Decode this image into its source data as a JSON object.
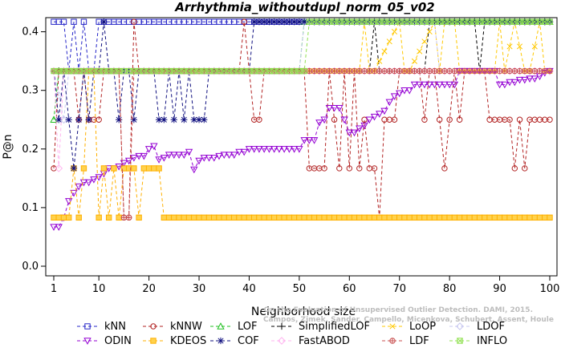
{
  "chart_data": {
    "type": "line",
    "title": "Arrhythmia_withoutdupl_norm_05_v02",
    "xlabel": "Neighborhood size",
    "ylabel": "P@n",
    "xlim": [
      1,
      100
    ],
    "ylim": [
      0,
      0.42
    ],
    "xticks": [
      1,
      10,
      20,
      30,
      40,
      50,
      60,
      70,
      80,
      90,
      100
    ],
    "yticks": [
      0.0,
      0.1,
      0.2,
      0.3,
      0.4
    ],
    "ytick_labels": [
      "0.0",
      "0.1",
      "0.2",
      "0.3",
      "0.4"
    ],
    "grid": false,
    "legend_position": "bottom",
    "watermark": [
      "Campos, Zimek, Sander, Campello, Micenkova, Schubert, Assent, Houle",
      "On the Evaluation of Unsupervised Outlier Detection. DAMI, 2015."
    ],
    "series": [
      {
        "name": "kNN",
        "color": "#2525c8",
        "marker": "square",
        "segments": [
          [
            1,
            0.417
          ],
          [
            3,
            0.417
          ],
          [
            4,
            0.333
          ],
          [
            5,
            0.417
          ],
          [
            6,
            0.333
          ],
          [
            7,
            0.417
          ],
          [
            8,
            0.333
          ],
          [
            9,
            0.333
          ],
          [
            10,
            0.417
          ],
          [
            100,
            0.417
          ]
        ]
      },
      {
        "name": "kNNW",
        "color": "#b22222",
        "marker": "circle",
        "segments": [
          [
            1,
            0.167
          ],
          [
            2,
            0.333
          ],
          [
            5,
            0.333
          ],
          [
            6,
            0.25
          ],
          [
            7,
            0.333
          ],
          [
            8,
            0.25
          ],
          [
            10,
            0.25
          ],
          [
            11,
            0.333
          ],
          [
            14,
            0.333
          ],
          [
            15,
            0.083
          ],
          [
            16,
            0.083
          ],
          [
            17,
            0.417
          ],
          [
            18,
            0.333
          ],
          [
            38,
            0.333
          ],
          [
            39,
            0.417
          ],
          [
            41,
            0.25
          ],
          [
            42,
            0.25
          ],
          [
            43,
            0.333
          ],
          [
            51,
            0.333
          ],
          [
            52,
            0.167
          ],
          [
            55,
            0.167
          ],
          [
            56,
            0.333
          ],
          [
            57,
            0.25
          ],
          [
            58,
            0.167
          ],
          [
            59,
            0.333
          ],
          [
            60,
            0.167
          ],
          [
            61,
            0.333
          ],
          [
            62,
            0.167
          ],
          [
            63,
            0.25
          ],
          [
            64,
            0.167
          ],
          [
            65,
            0.167
          ],
          [
            66,
            0.083
          ],
          [
            67,
            0.25
          ],
          [
            68,
            0.25
          ],
          [
            69,
            0.25
          ],
          [
            70,
            0.333
          ],
          [
            74,
            0.333
          ],
          [
            75,
            0.25
          ],
          [
            76,
            0.333
          ],
          [
            77,
            0.333
          ],
          [
            78,
            0.25
          ],
          [
            79,
            0.167
          ],
          [
            80,
            0.25
          ],
          [
            81,
            0.333
          ],
          [
            82,
            0.25
          ],
          [
            83,
            0.333
          ],
          [
            87,
            0.333
          ],
          [
            88,
            0.25
          ],
          [
            91,
            0.25
          ],
          [
            92,
            0.25
          ],
          [
            93,
            0.167
          ],
          [
            94,
            0.25
          ],
          [
            95,
            0.167
          ],
          [
            96,
            0.25
          ],
          [
            100,
            0.25
          ]
        ]
      },
      {
        "name": "LOF",
        "color": "#22c022",
        "marker": "triangle",
        "segments": [
          [
            1,
            0.25
          ],
          [
            2,
            0.333
          ],
          [
            50,
            0.333
          ],
          [
            51,
            0.417
          ],
          [
            100,
            0.417
          ]
        ]
      },
      {
        "name": "SimplifiedLOF",
        "color": "#000000",
        "marker": "plus",
        "segments": [
          [
            1,
            0.333
          ],
          [
            64,
            0.333
          ],
          [
            65,
            0.417
          ],
          [
            66,
            0.333
          ],
          [
            75,
            0.333
          ],
          [
            76,
            0.417
          ],
          [
            85,
            0.417
          ],
          [
            86,
            0.333
          ],
          [
            87,
            0.417
          ],
          [
            100,
            0.417
          ]
        ]
      },
      {
        "name": "LoOP",
        "color": "#ffc800",
        "marker": "x",
        "segments": [
          [
            1,
            0.333
          ],
          [
            62,
            0.333
          ],
          [
            63,
            0.417
          ],
          [
            64,
            0.333
          ],
          [
            65,
            0.333
          ],
          [
            70,
            0.417
          ],
          [
            71,
            0.333
          ],
          [
            72,
            0.333
          ],
          [
            77,
            0.417
          ],
          [
            78,
            0.333
          ],
          [
            79,
            0.417
          ],
          [
            81,
            0.417
          ],
          [
            82,
            0.333
          ],
          [
            89,
            0.333
          ],
          [
            90,
            0.417
          ],
          [
            91,
            0.333
          ],
          [
            93,
            0.417
          ],
          [
            95,
            0.333
          ],
          [
            96,
            0.333
          ],
          [
            98,
            0.417
          ],
          [
            99,
            0.333
          ],
          [
            100,
            0.333
          ]
        ]
      },
      {
        "name": "LDOF",
        "color": "#c8c8f0",
        "marker": "diamond",
        "segments": [
          [
            1,
            0.333
          ],
          [
            3,
            0.25
          ],
          [
            4,
            0.333
          ],
          [
            50,
            0.333
          ],
          [
            51,
            0.417
          ],
          [
            77,
            0.417
          ],
          [
            78,
            0.333
          ],
          [
            100,
            0.333
          ]
        ]
      },
      {
        "name": "ODIN",
        "color": "#9400d3",
        "marker": "triangle-down",
        "segments": [
          [
            1,
            0.067
          ],
          [
            2,
            0.067
          ],
          [
            3,
            0.083
          ],
          [
            4,
            0.111
          ],
          [
            5,
            0.125
          ],
          [
            6,
            0.136
          ],
          [
            7,
            0.143
          ],
          [
            8,
            0.143
          ],
          [
            9,
            0.148
          ],
          [
            10,
            0.152
          ],
          [
            11,
            0.158
          ],
          [
            12,
            0.167
          ],
          [
            13,
            0.167
          ],
          [
            14,
            0.17
          ],
          [
            15,
            0.176
          ],
          [
            16,
            0.18
          ],
          [
            17,
            0.185
          ],
          [
            18,
            0.188
          ],
          [
            19,
            0.188
          ],
          [
            20,
            0.2
          ],
          [
            21,
            0.205
          ],
          [
            22,
            0.182
          ],
          [
            23,
            0.185
          ],
          [
            24,
            0.19
          ],
          [
            25,
            0.19
          ],
          [
            26,
            0.19
          ],
          [
            27,
            0.19
          ],
          [
            28,
            0.195
          ],
          [
            29,
            0.165
          ],
          [
            30,
            0.18
          ],
          [
            31,
            0.185
          ],
          [
            32,
            0.185
          ],
          [
            33,
            0.185
          ],
          [
            34,
            0.188
          ],
          [
            35,
            0.19
          ],
          [
            36,
            0.19
          ],
          [
            37,
            0.19
          ],
          [
            38,
            0.195
          ],
          [
            39,
            0.195
          ],
          [
            40,
            0.2
          ],
          [
            41,
            0.2
          ],
          [
            42,
            0.2
          ],
          [
            43,
            0.2
          ],
          [
            44,
            0.2
          ],
          [
            45,
            0.2
          ],
          [
            46,
            0.2
          ],
          [
            47,
            0.2
          ],
          [
            48,
            0.2
          ],
          [
            49,
            0.2
          ],
          [
            50,
            0.2
          ],
          [
            51,
            0.215
          ],
          [
            52,
            0.215
          ],
          [
            53,
            0.215
          ],
          [
            54,
            0.245
          ],
          [
            55,
            0.25
          ],
          [
            56,
            0.27
          ],
          [
            57,
            0.27
          ],
          [
            58,
            0.27
          ],
          [
            59,
            0.25
          ],
          [
            60,
            0.228
          ],
          [
            61,
            0.228
          ],
          [
            62,
            0.235
          ],
          [
            63,
            0.24
          ],
          [
            64,
            0.25
          ],
          [
            65,
            0.255
          ],
          [
            66,
            0.26
          ],
          [
            67,
            0.265
          ],
          [
            68,
            0.28
          ],
          [
            69,
            0.29
          ],
          [
            70,
            0.295
          ],
          [
            71,
            0.3
          ],
          [
            72,
            0.3
          ],
          [
            73,
            0.31
          ],
          [
            74,
            0.31
          ],
          [
            75,
            0.31
          ],
          [
            76,
            0.31
          ],
          [
            77,
            0.31
          ],
          [
            78,
            0.31
          ],
          [
            79,
            0.31
          ],
          [
            80,
            0.31
          ],
          [
            81,
            0.31
          ],
          [
            82,
            0.333
          ],
          [
            83,
            0.333
          ],
          [
            84,
            0.333
          ],
          [
            85,
            0.333
          ],
          [
            86,
            0.333
          ],
          [
            87,
            0.333
          ],
          [
            88,
            0.333
          ],
          [
            89,
            0.333
          ],
          [
            90,
            0.31
          ],
          [
            91,
            0.31
          ],
          [
            92,
            0.314
          ],
          [
            93,
            0.314
          ],
          [
            94,
            0.318
          ],
          [
            95,
            0.318
          ],
          [
            96,
            0.32
          ],
          [
            97,
            0.32
          ],
          [
            98,
            0.324
          ],
          [
            99,
            0.33
          ],
          [
            100,
            0.333
          ]
        ]
      },
      {
        "name": "KDEOS",
        "color": "#ffb000",
        "marker": "square-fill",
        "segments": [
          [
            1,
            0.083
          ],
          [
            4,
            0.083
          ],
          [
            5,
            0.167
          ],
          [
            6,
            0.083
          ],
          [
            7,
            0.167
          ],
          [
            8,
            0.333
          ],
          [
            9,
            0.333
          ],
          [
            10,
            0.083
          ],
          [
            11,
            0.167
          ],
          [
            12,
            0.083
          ],
          [
            13,
            0.167
          ],
          [
            14,
            0.083
          ],
          [
            15,
            0.167
          ],
          [
            17,
            0.167
          ],
          [
            18,
            0.083
          ],
          [
            19,
            0.167
          ],
          [
            22,
            0.167
          ],
          [
            23,
            0.083
          ],
          [
            100,
            0.083
          ]
        ]
      },
      {
        "name": "COF",
        "color": "#0f0f7f",
        "marker": "star",
        "segments": [
          [
            1,
            0.333
          ],
          [
            2,
            0.25
          ],
          [
            3,
            0.333
          ],
          [
            4,
            0.25
          ],
          [
            5,
            0.167
          ],
          [
            6,
            0.25
          ],
          [
            7,
            0.333
          ],
          [
            8,
            0.25
          ],
          [
            9,
            0.333
          ],
          [
            10,
            0.333
          ],
          [
            11,
            0.417
          ],
          [
            12,
            0.333
          ],
          [
            13,
            0.333
          ],
          [
            14,
            0.25
          ],
          [
            15,
            0.333
          ],
          [
            16,
            0.333
          ],
          [
            17,
            0.25
          ],
          [
            18,
            0.333
          ],
          [
            21,
            0.333
          ],
          [
            22,
            0.25
          ],
          [
            23,
            0.25
          ],
          [
            24,
            0.333
          ],
          [
            25,
            0.25
          ],
          [
            26,
            0.333
          ],
          [
            27,
            0.25
          ],
          [
            28,
            0.333
          ],
          [
            29,
            0.25
          ],
          [
            30,
            0.25
          ],
          [
            31,
            0.25
          ],
          [
            32,
            0.333
          ],
          [
            40,
            0.333
          ],
          [
            41,
            0.417
          ],
          [
            100,
            0.417
          ]
        ]
      },
      {
        "name": "FastABOD",
        "color": "#ffb4f0",
        "marker": "diamond",
        "segments": [
          [
            1,
            0.333
          ],
          [
            2,
            0.167
          ],
          [
            3,
            0.333
          ],
          [
            100,
            0.333
          ]
        ]
      },
      {
        "name": "LDF",
        "color": "#c85050",
        "marker": "circle-plus",
        "segments": [
          [
            1,
            0.333
          ],
          [
            14,
            0.333
          ],
          [
            15,
            0.083
          ],
          [
            16,
            0.083
          ],
          [
            17,
            0.333
          ],
          [
            100,
            0.333
          ]
        ]
      },
      {
        "name": "INFLO",
        "color": "#90e050",
        "marker": "square-x",
        "segments": [
          [
            1,
            0.333
          ],
          [
            51,
            0.333
          ],
          [
            52,
            0.417
          ],
          [
            100,
            0.417
          ]
        ]
      }
    ]
  },
  "legend_rows": [
    [
      "kNN",
      "kNNW",
      "LOF",
      "SimplifiedLOF",
      "LoOP",
      "LDOF"
    ],
    [
      "ODIN",
      "KDEOS",
      "COF",
      "FastABOD",
      "LDF",
      "INFLO"
    ]
  ]
}
